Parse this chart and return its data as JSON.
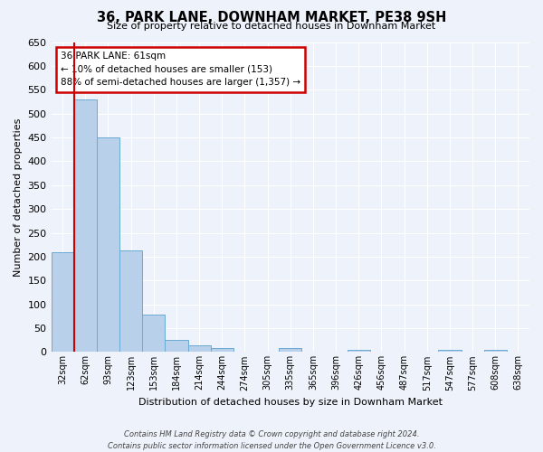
{
  "title": "36, PARK LANE, DOWNHAM MARKET, PE38 9SH",
  "subtitle": "Size of property relative to detached houses in Downham Market",
  "xlabel": "Distribution of detached houses by size in Downham Market",
  "ylabel": "Number of detached properties",
  "footer_line1": "Contains HM Land Registry data © Crown copyright and database right 2024.",
  "footer_line2": "Contains public sector information licensed under the Open Government Licence v3.0.",
  "bar_labels": [
    "32sqm",
    "62sqm",
    "93sqm",
    "123sqm",
    "153sqm",
    "184sqm",
    "214sqm",
    "244sqm",
    "274sqm",
    "305sqm",
    "335sqm",
    "365sqm",
    "396sqm",
    "426sqm",
    "456sqm",
    "487sqm",
    "517sqm",
    "547sqm",
    "577sqm",
    "608sqm",
    "638sqm"
  ],
  "bar_values": [
    210,
    530,
    450,
    213,
    78,
    25,
    14,
    9,
    0,
    0,
    8,
    0,
    0,
    5,
    0,
    0,
    0,
    4,
    0,
    4,
    0
  ],
  "bar_color": "#b8d0ea",
  "bar_edge_color": "#6aaad4",
  "ylim": [
    0,
    650
  ],
  "yticks": [
    0,
    50,
    100,
    150,
    200,
    250,
    300,
    350,
    400,
    450,
    500,
    550,
    600,
    650
  ],
  "property_line_x": 0.5,
  "annotation_title": "36 PARK LANE: 61sqm",
  "annotation_line2": "← 10% of detached houses are smaller (153)",
  "annotation_line3": "88% of semi-detached houses are larger (1,357) →",
  "annotation_box_color": "#ffffff",
  "annotation_border_color": "#cc0000",
  "property_line_color": "#cc0000",
  "bg_color": "#eef2fa",
  "grid_color": "#ffffff"
}
